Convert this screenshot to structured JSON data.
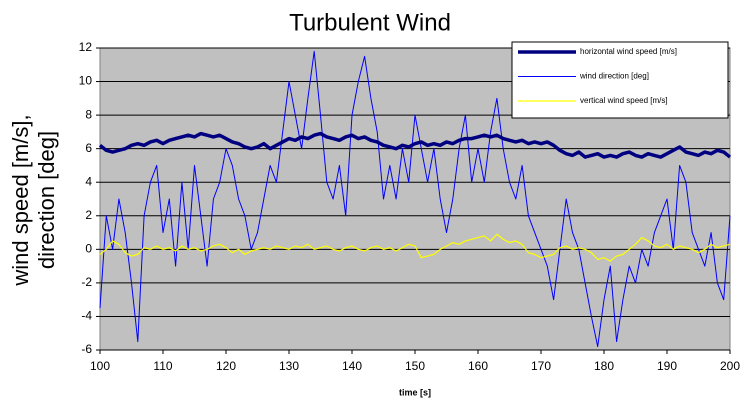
{
  "chart_data": {
    "type": "line",
    "title": "Turbulent Wind",
    "x_label": "time [s]",
    "y_label_lines": [
      "wind speed [m/s],",
      "direction [deg]"
    ],
    "xlim": [
      100,
      200
    ],
    "xticks": [
      100,
      110,
      120,
      130,
      140,
      150,
      160,
      170,
      180,
      190,
      200
    ],
    "ylim": [
      -6,
      12
    ],
    "yticks": [
      -6,
      -4,
      -2,
      0,
      2,
      4,
      6,
      8,
      10,
      12
    ],
    "grid": true,
    "legend": "upper right",
    "x": [
      100,
      101,
      102,
      103,
      104,
      105,
      106,
      107,
      108,
      109,
      110,
      111,
      112,
      113,
      114,
      115,
      116,
      117,
      118,
      119,
      120,
      121,
      122,
      123,
      124,
      125,
      126,
      127,
      128,
      129,
      130,
      131,
      132,
      133,
      134,
      135,
      136,
      137,
      138,
      139,
      140,
      141,
      142,
      143,
      144,
      145,
      146,
      147,
      148,
      149,
      150,
      151,
      152,
      153,
      154,
      155,
      156,
      157,
      158,
      159,
      160,
      161,
      162,
      163,
      164,
      165,
      166,
      167,
      168,
      169,
      170,
      171,
      172,
      173,
      174,
      175,
      176,
      177,
      178,
      179,
      180,
      181,
      182,
      183,
      184,
      185,
      186,
      187,
      188,
      189,
      190,
      191,
      192,
      193,
      194,
      195,
      196,
      197,
      198,
      199,
      200
    ],
    "series": [
      {
        "name": "horizontal wind speed [m/s]",
        "color": "#000080",
        "width": 3.5,
        "values": [
          6.2,
          5.9,
          5.8,
          5.9,
          6.0,
          6.2,
          6.3,
          6.2,
          6.4,
          6.5,
          6.3,
          6.5,
          6.6,
          6.7,
          6.8,
          6.7,
          6.9,
          6.8,
          6.7,
          6.8,
          6.6,
          6.4,
          6.3,
          6.1,
          6.0,
          6.1,
          6.3,
          6.0,
          6.2,
          6.4,
          6.6,
          6.5,
          6.7,
          6.6,
          6.8,
          6.9,
          6.7,
          6.6,
          6.5,
          6.7,
          6.8,
          6.6,
          6.7,
          6.5,
          6.4,
          6.2,
          6.1,
          6.0,
          6.2,
          6.1,
          6.3,
          6.4,
          6.2,
          6.3,
          6.2,
          6.4,
          6.3,
          6.5,
          6.6,
          6.6,
          6.7,
          6.8,
          6.7,
          6.8,
          6.6,
          6.5,
          6.4,
          6.5,
          6.3,
          6.4,
          6.3,
          6.4,
          6.2,
          5.9,
          5.7,
          5.6,
          5.8,
          5.5,
          5.6,
          5.7,
          5.5,
          5.6,
          5.5,
          5.7,
          5.8,
          5.6,
          5.5,
          5.7,
          5.6,
          5.5,
          5.7,
          5.9,
          6.1,
          5.8,
          5.7,
          5.6,
          5.8,
          5.7,
          5.9,
          5.8,
          5.5
        ]
      },
      {
        "name": "wind direction [deg]",
        "color": "#0000ff",
        "width": 1,
        "values": [
          -3.5,
          2,
          0,
          3,
          1,
          -2,
          -5.5,
          2,
          4,
          5,
          1,
          3,
          -1,
          4,
          0,
          5,
          2,
          -1,
          3,
          4,
          6,
          5,
          3,
          2,
          0,
          1,
          3,
          5,
          4,
          7,
          10,
          8,
          6,
          9,
          11.8,
          8,
          4,
          3,
          5,
          2,
          8,
          10,
          11.5,
          9,
          7,
          3,
          5,
          3,
          6,
          4,
          8,
          6,
          4,
          6,
          3,
          1,
          3,
          6,
          8,
          4,
          6,
          4,
          7,
          9,
          6,
          4,
          3,
          5,
          2,
          1,
          0,
          -1,
          -3,
          0,
          3,
          1,
          0,
          -2,
          -4,
          -5.8,
          -3,
          -1,
          -5.5,
          -3,
          -1,
          -2,
          0,
          -1,
          1,
          2,
          3,
          0,
          5,
          4,
          1,
          0,
          -1,
          1,
          -2,
          -3,
          2
        ]
      },
      {
        "name": "vertical wind speed [m/s]",
        "color": "#ffff00",
        "width": 1.2,
        "values": [
          -0.3,
          0,
          0.5,
          0.3,
          -0.2,
          -0.4,
          -0.3,
          0.1,
          0,
          0.2,
          0,
          0.1,
          -0.1,
          0.2,
          0,
          0.1,
          -0.1,
          0,
          0.2,
          0.3,
          0.1,
          -0.2,
          0,
          -0.3,
          -0.1,
          0,
          0.1,
          0,
          0.2,
          0.1,
          0,
          0.2,
          0.1,
          0.3,
          0,
          0.1,
          0.2,
          0,
          -0.1,
          0.1,
          0.2,
          0,
          -0.1,
          0.1,
          0.2,
          0,
          0.1,
          -0.1,
          0.1,
          0.3,
          0.2,
          -0.5,
          -0.4,
          -0.3,
          0,
          0.2,
          0.4,
          0.3,
          0.5,
          0.6,
          0.7,
          0.8,
          0.5,
          0.9,
          0.6,
          0.4,
          0.5,
          0.3,
          -0.2,
          -0.3,
          -0.5,
          -0.4,
          -0.3,
          0.1,
          0.2,
          0,
          0.1,
          0,
          -0.2,
          -0.6,
          -0.5,
          -0.7,
          -0.4,
          -0.3,
          0,
          0.3,
          0.7,
          0.5,
          0.2,
          0.1,
          0.3,
          0,
          0.2,
          0.1,
          0,
          -0.2,
          0,
          0.3,
          0.1,
          0.2,
          0.3
        ]
      }
    ]
  }
}
